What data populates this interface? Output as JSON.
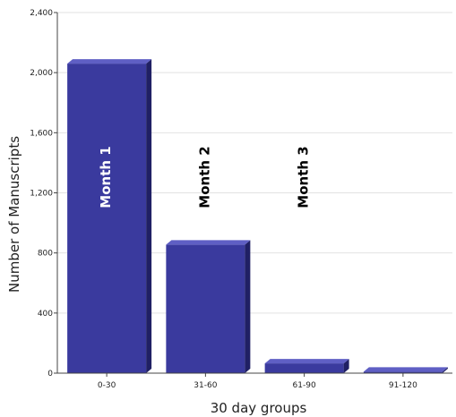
{
  "chart_data": {
    "type": "bar",
    "categories": [
      "0-30",
      "31-60",
      "61-90",
      "91-120"
    ],
    "values": [
      2060,
      855,
      65,
      10
    ],
    "xlabel": "30 day groups",
    "ylabel": "Number of Manuscripts",
    "ylim": [
      0,
      2400
    ],
    "yticks": [
      0,
      400,
      800,
      1200,
      1600,
      2000,
      2400
    ],
    "ytick_labels": [
      "0",
      "400",
      "800",
      "1,200",
      "1,600",
      "2,000",
      "2,400"
    ],
    "grid": true,
    "bar_color": "#3a3a9e",
    "annotations": [
      {
        "text": "Month 1",
        "category": "0-30",
        "color": "#ffffff"
      },
      {
        "text": "Month 2",
        "category": "31-60",
        "color": "#000000"
      },
      {
        "text": "Month 3",
        "category": "61-90",
        "color": "#000000"
      }
    ]
  }
}
